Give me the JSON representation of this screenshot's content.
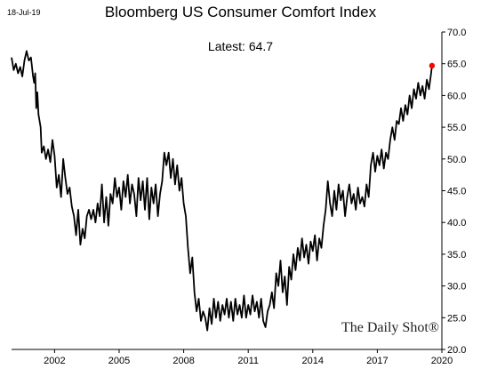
{
  "header": {
    "date": "18-Jul-19",
    "title": "Bloomberg US Consumer Comfort Index",
    "annotation": "Latest:  64.7"
  },
  "watermark": "The Daily Shot®",
  "colors": {
    "line": "#000000",
    "latest_marker": "#ff0000"
  },
  "chart_data": {
    "type": "line",
    "title": "Bloomberg US Consumer Comfort Index",
    "xlabel": "",
    "ylabel": "",
    "xlim": [
      2000.0,
      2020.0
    ],
    "ylim": [
      20.0,
      70.0
    ],
    "x_ticks": [
      "2002",
      "2005",
      "2008",
      "2011",
      "2014",
      "2017",
      "2020"
    ],
    "y_ticks": [
      "20.0",
      "25.0",
      "30.0",
      "35.0",
      "40.0",
      "45.0",
      "50.0",
      "55.0",
      "60.0",
      "65.0",
      "70.0"
    ],
    "y_axis_side": "right",
    "grid": false,
    "latest": {
      "x": 2019.54,
      "y": 64.7
    },
    "series": [
      {
        "values": [
          [
            2000.0,
            66.0
          ],
          [
            2000.1,
            64.0
          ],
          [
            2000.2,
            65.0
          ],
          [
            2000.3,
            63.5
          ],
          [
            2000.4,
            64.5
          ],
          [
            2000.5,
            63.0
          ],
          [
            2000.6,
            65.5
          ],
          [
            2000.7,
            67.0
          ],
          [
            2000.8,
            65.5
          ],
          [
            2000.9,
            66.0
          ],
          [
            2001.0,
            63.0
          ],
          [
            2001.05,
            62.0
          ],
          [
            2001.1,
            63.5
          ],
          [
            2001.15,
            58.0
          ],
          [
            2001.2,
            60.5
          ],
          [
            2001.25,
            57.0
          ],
          [
            2001.35,
            55.0
          ],
          [
            2001.4,
            51.0
          ],
          [
            2001.5,
            52.0
          ],
          [
            2001.6,
            50.0
          ],
          [
            2001.7,
            51.5
          ],
          [
            2001.8,
            49.5
          ],
          [
            2001.9,
            53.0
          ],
          [
            2002.0,
            50.5
          ],
          [
            2002.1,
            45.5
          ],
          [
            2002.2,
            47.5
          ],
          [
            2002.3,
            44.0
          ],
          [
            2002.4,
            50.0
          ],
          [
            2002.5,
            47.0
          ],
          [
            2002.6,
            44.5
          ],
          [
            2002.7,
            45.5
          ],
          [
            2002.8,
            42.5
          ],
          [
            2002.9,
            41.0
          ],
          [
            2003.0,
            38.0
          ],
          [
            2003.1,
            42.0
          ],
          [
            2003.2,
            36.5
          ],
          [
            2003.3,
            39.0
          ],
          [
            2003.4,
            37.5
          ],
          [
            2003.5,
            41.0
          ],
          [
            2003.6,
            42.0
          ],
          [
            2003.7,
            40.5
          ],
          [
            2003.8,
            42.0
          ],
          [
            2003.9,
            40.0
          ],
          [
            2004.0,
            43.0
          ],
          [
            2004.1,
            41.0
          ],
          [
            2004.2,
            46.0
          ],
          [
            2004.3,
            40.0
          ],
          [
            2004.4,
            44.0
          ],
          [
            2004.5,
            39.5
          ],
          [
            2004.6,
            44.5
          ],
          [
            2004.7,
            43.0
          ],
          [
            2004.8,
            47.0
          ],
          [
            2004.9,
            44.0
          ],
          [
            2005.0,
            45.5
          ],
          [
            2005.1,
            42.0
          ],
          [
            2005.2,
            46.5
          ],
          [
            2005.3,
            44.0
          ],
          [
            2005.4,
            47.5
          ],
          [
            2005.5,
            43.0
          ],
          [
            2005.6,
            46.0
          ],
          [
            2005.7,
            44.5
          ],
          [
            2005.8,
            41.0
          ],
          [
            2005.9,
            47.0
          ],
          [
            2006.0,
            43.5
          ],
          [
            2006.1,
            46.5
          ],
          [
            2006.2,
            42.0
          ],
          [
            2006.3,
            47.0
          ],
          [
            2006.4,
            40.5
          ],
          [
            2006.5,
            45.5
          ],
          [
            2006.6,
            43.0
          ],
          [
            2006.7,
            46.0
          ],
          [
            2006.8,
            41.0
          ],
          [
            2006.9,
            44.5
          ],
          [
            2007.0,
            46.5
          ],
          [
            2007.1,
            51.0
          ],
          [
            2007.2,
            49.0
          ],
          [
            2007.3,
            51.0
          ],
          [
            2007.4,
            47.0
          ],
          [
            2007.5,
            50.0
          ],
          [
            2007.6,
            46.0
          ],
          [
            2007.7,
            49.0
          ],
          [
            2007.8,
            45.0
          ],
          [
            2007.9,
            47.0
          ],
          [
            2008.0,
            43.0
          ],
          [
            2008.1,
            41.0
          ],
          [
            2008.2,
            36.0
          ],
          [
            2008.3,
            32.0
          ],
          [
            2008.4,
            34.5
          ],
          [
            2008.5,
            29.0
          ],
          [
            2008.6,
            26.0
          ],
          [
            2008.7,
            28.0
          ],
          [
            2008.8,
            24.5
          ],
          [
            2008.9,
            26.0
          ],
          [
            2009.0,
            25.0
          ],
          [
            2009.1,
            23.0
          ],
          [
            2009.2,
            26.5
          ],
          [
            2009.3,
            24.0
          ],
          [
            2009.4,
            28.0
          ],
          [
            2009.5,
            25.0
          ],
          [
            2009.6,
            27.5
          ],
          [
            2009.7,
            24.5
          ],
          [
            2009.8,
            27.0
          ],
          [
            2009.9,
            25.5
          ],
          [
            2010.0,
            28.0
          ],
          [
            2010.1,
            25.0
          ],
          [
            2010.2,
            27.5
          ],
          [
            2010.3,
            24.5
          ],
          [
            2010.4,
            28.0
          ],
          [
            2010.5,
            25.5
          ],
          [
            2010.6,
            27.0
          ],
          [
            2010.7,
            25.0
          ],
          [
            2010.8,
            28.5
          ],
          [
            2010.9,
            25.0
          ],
          [
            2011.0,
            27.0
          ],
          [
            2011.1,
            25.5
          ],
          [
            2011.2,
            28.5
          ],
          [
            2011.3,
            26.0
          ],
          [
            2011.4,
            27.5
          ],
          [
            2011.5,
            25.0
          ],
          [
            2011.6,
            28.0
          ],
          [
            2011.7,
            24.5
          ],
          [
            2011.8,
            23.5
          ],
          [
            2011.9,
            26.0
          ],
          [
            2012.0,
            27.0
          ],
          [
            2012.1,
            29.0
          ],
          [
            2012.2,
            26.5
          ],
          [
            2012.3,
            32.0
          ],
          [
            2012.4,
            30.0
          ],
          [
            2012.5,
            34.0
          ],
          [
            2012.6,
            29.0
          ],
          [
            2012.7,
            31.5
          ],
          [
            2012.8,
            27.0
          ],
          [
            2012.9,
            33.0
          ],
          [
            2013.0,
            31.0
          ],
          [
            2013.1,
            35.0
          ],
          [
            2013.2,
            32.5
          ],
          [
            2013.3,
            36.0
          ],
          [
            2013.4,
            34.0
          ],
          [
            2013.5,
            37.5
          ],
          [
            2013.6,
            34.5
          ],
          [
            2013.7,
            36.5
          ],
          [
            2013.8,
            33.5
          ],
          [
            2013.9,
            37.0
          ],
          [
            2014.0,
            35.5
          ],
          [
            2014.1,
            38.0
          ],
          [
            2014.2,
            34.0
          ],
          [
            2014.3,
            37.5
          ],
          [
            2014.4,
            36.0
          ],
          [
            2014.5,
            39.5
          ],
          [
            2014.6,
            42.0
          ],
          [
            2014.7,
            46.5
          ],
          [
            2014.8,
            43.0
          ],
          [
            2014.9,
            41.0
          ],
          [
            2015.0,
            45.0
          ],
          [
            2015.1,
            42.0
          ],
          [
            2015.2,
            46.0
          ],
          [
            2015.3,
            43.5
          ],
          [
            2015.4,
            45.0
          ],
          [
            2015.5,
            41.0
          ],
          [
            2015.6,
            44.0
          ],
          [
            2015.7,
            46.0
          ],
          [
            2015.8,
            43.0
          ],
          [
            2015.9,
            44.5
          ],
          [
            2016.0,
            42.0
          ],
          [
            2016.1,
            45.5
          ],
          [
            2016.2,
            43.0
          ],
          [
            2016.3,
            44.0
          ],
          [
            2016.4,
            42.5
          ],
          [
            2016.5,
            46.0
          ],
          [
            2016.6,
            44.0
          ],
          [
            2016.7,
            49.0
          ],
          [
            2016.8,
            51.0
          ],
          [
            2016.9,
            48.0
          ],
          [
            2017.0,
            50.5
          ],
          [
            2017.1,
            49.0
          ],
          [
            2017.2,
            51.5
          ],
          [
            2017.3,
            48.5
          ],
          [
            2017.4,
            51.0
          ],
          [
            2017.5,
            50.0
          ],
          [
            2017.6,
            53.0
          ],
          [
            2017.7,
            55.0
          ],
          [
            2017.8,
            53.0
          ],
          [
            2017.9,
            56.0
          ],
          [
            2018.0,
            55.5
          ],
          [
            2018.1,
            58.0
          ],
          [
            2018.2,
            56.0
          ],
          [
            2018.3,
            58.5
          ],
          [
            2018.4,
            57.0
          ],
          [
            2018.5,
            60.0
          ],
          [
            2018.6,
            58.0
          ],
          [
            2018.7,
            61.0
          ],
          [
            2018.8,
            59.5
          ],
          [
            2018.9,
            62.0
          ],
          [
            2019.0,
            60.0
          ],
          [
            2019.1,
            61.5
          ],
          [
            2019.2,
            59.5
          ],
          [
            2019.3,
            62.5
          ],
          [
            2019.4,
            61.0
          ],
          [
            2019.5,
            63.5
          ],
          [
            2019.54,
            64.7
          ]
        ]
      }
    ]
  }
}
